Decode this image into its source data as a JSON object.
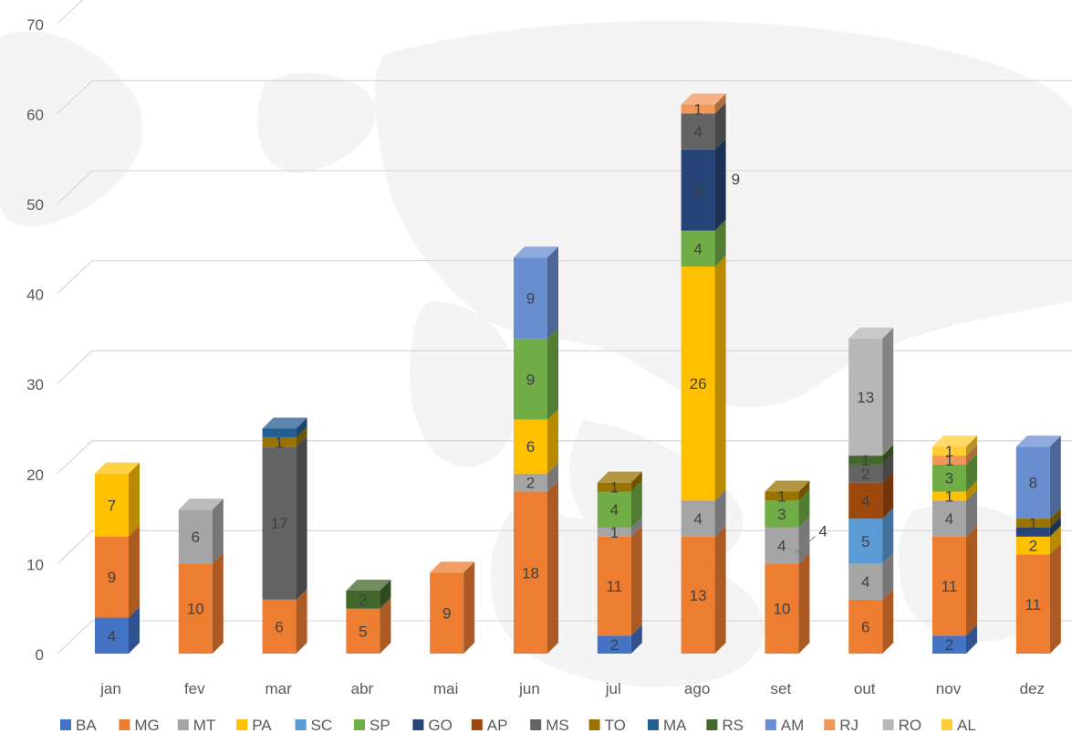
{
  "chart_data": {
    "type": "bar",
    "stacked": true,
    "style": "3d-column",
    "title": "",
    "xlabel": "",
    "ylabel": "",
    "ylim": [
      0,
      70
    ],
    "y_ticks": [
      0,
      10,
      20,
      30,
      40,
      50,
      60,
      70
    ],
    "grid": true,
    "legend_position": "bottom",
    "background": "faint world map",
    "categories": [
      "jan",
      "fev",
      "mar",
      "abr",
      "mai",
      "jun",
      "jul",
      "ago",
      "set",
      "out",
      "nov",
      "dez"
    ],
    "series": [
      {
        "name": "BA",
        "color": "#4472C4",
        "values": [
          4,
          0,
          0,
          0,
          0,
          0,
          2,
          0,
          0,
          0,
          2,
          0
        ],
        "labels": [
          "4",
          "",
          "",
          "",
          "",
          "",
          "2",
          "",
          "",
          "",
          "2",
          ""
        ]
      },
      {
        "name": "MG",
        "color": "#ED7D31",
        "values": [
          9,
          10,
          6,
          5,
          9,
          18,
          11,
          13,
          10,
          6,
          11,
          11
        ],
        "labels": [
          "9",
          "10",
          "6",
          "5",
          "9",
          "18",
          "11",
          "13",
          "10",
          "6",
          "11",
          "11"
        ]
      },
      {
        "name": "MT",
        "color": "#A5A5A5",
        "values": [
          0,
          6,
          0,
          0,
          0,
          2,
          1,
          4,
          4,
          4,
          4,
          0
        ],
        "labels": [
          "",
          "6",
          "",
          "",
          "",
          "2",
          "1",
          "4",
          "4",
          "4",
          "4",
          ""
        ]
      },
      {
        "name": "PA",
        "color": "#FFC000",
        "values": [
          7,
          0,
          0,
          0,
          0,
          6,
          0,
          26,
          0,
          0,
          1,
          2
        ],
        "labels": [
          "7",
          "",
          "",
          "",
          "",
          "6",
          "",
          "26",
          "",
          "",
          "1",
          "2"
        ]
      },
      {
        "name": "SC",
        "color": "#5B9BD5",
        "values": [
          0,
          0,
          0,
          0,
          0,
          0,
          0,
          0,
          0,
          5,
          0,
          0
        ],
        "labels": [
          "",
          "",
          "",
          "",
          "",
          "",
          "",
          "",
          "",
          "5",
          "",
          ""
        ]
      },
      {
        "name": "SP",
        "color": "#70AD47",
        "values": [
          0,
          0,
          0,
          0,
          0,
          9,
          4,
          4,
          3,
          0,
          3,
          0
        ],
        "labels": [
          "",
          "",
          "",
          "",
          "",
          "9",
          "4",
          "4",
          "3",
          "",
          "3",
          ""
        ]
      },
      {
        "name": "GO",
        "color": "#264478",
        "values": [
          0,
          0,
          0,
          0,
          0,
          0,
          0,
          9,
          0,
          0,
          0,
          1
        ],
        "labels": [
          "",
          "",
          "",
          "",
          "",
          "",
          "",
          "9",
          "",
          "",
          "",
          ""
        ]
      },
      {
        "name": "AP",
        "color": "#9E480E",
        "values": [
          0,
          0,
          0,
          0,
          0,
          0,
          0,
          0,
          0,
          4,
          0,
          0
        ],
        "labels": [
          "",
          "",
          "",
          "",
          "",
          "",
          "",
          "",
          "",
          "4",
          "",
          ""
        ]
      },
      {
        "name": "MS",
        "color": "#636363",
        "values": [
          0,
          0,
          17,
          0,
          0,
          0,
          0,
          4,
          0,
          2,
          0,
          0
        ],
        "labels": [
          "",
          "",
          "17",
          "",
          "",
          "",
          "",
          "4",
          "",
          "2",
          "",
          ""
        ]
      },
      {
        "name": "TO",
        "color": "#997300",
        "values": [
          0,
          0,
          1,
          0,
          0,
          0,
          1,
          0,
          1,
          0,
          0,
          1
        ],
        "labels": [
          "",
          "",
          "1",
          "",
          "",
          "",
          "1",
          "",
          "1",
          "",
          "",
          "1"
        ]
      },
      {
        "name": "MA",
        "color": "#255E91",
        "values": [
          0,
          0,
          1,
          0,
          0,
          0,
          0,
          0,
          0,
          0,
          0,
          0
        ],
        "labels": [
          "",
          "",
          "",
          "",
          "",
          "",
          "",
          "",
          "",
          "",
          "",
          ""
        ]
      },
      {
        "name": "RS",
        "color": "#43682B",
        "values": [
          0,
          0,
          0,
          2,
          0,
          0,
          0,
          0,
          0,
          1,
          0,
          0
        ],
        "labels": [
          "",
          "",
          "",
          "2",
          "",
          "",
          "",
          "",
          "",
          "1",
          "",
          ""
        ]
      },
      {
        "name": "AM",
        "color": "#698ED0",
        "values": [
          0,
          0,
          0,
          0,
          0,
          9,
          0,
          0,
          0,
          0,
          0,
          8
        ],
        "labels": [
          "",
          "",
          "",
          "",
          "",
          "9",
          "",
          "",
          "",
          "",
          "",
          "8"
        ]
      },
      {
        "name": "RJ",
        "color": "#F1975A",
        "values": [
          0,
          0,
          0,
          0,
          0,
          0,
          0,
          1,
          0,
          0,
          1,
          0
        ],
        "labels": [
          "",
          "",
          "",
          "",
          "",
          "",
          "",
          "1",
          "",
          "",
          "1",
          ""
        ]
      },
      {
        "name": "RO",
        "color": "#B7B7B7",
        "values": [
          0,
          0,
          0,
          0,
          0,
          0,
          0,
          0,
          0,
          13,
          0,
          0
        ],
        "labels": [
          "",
          "",
          "",
          "",
          "",
          "",
          "",
          "",
          "",
          "13",
          "",
          ""
        ]
      },
      {
        "name": "AL",
        "color": "#FFCD33",
        "values": [
          0,
          0,
          0,
          0,
          0,
          0,
          0,
          0,
          0,
          0,
          1,
          0
        ],
        "labels": [
          "",
          "",
          "",
          "",
          "",
          "",
          "",
          "",
          "",
          "",
          "1",
          ""
        ]
      }
    ],
    "outside_labels": [
      {
        "category": "ago",
        "series": "GO",
        "text": "9"
      },
      {
        "category": "set",
        "series": "MT",
        "text": "4"
      }
    ]
  }
}
